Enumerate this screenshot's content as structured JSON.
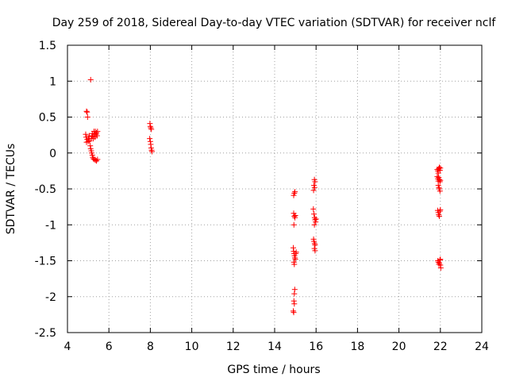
{
  "chart_data": {
    "type": "scatter",
    "title": "Day 259 of 2018, Sidereal Day-to-day VTEC variation (SDTVAR) for receiver nclf",
    "xlabel": "GPS time / hours",
    "ylabel": "SDTVAR / TECUs",
    "xlim": [
      4,
      24
    ],
    "ylim": [
      -2.5,
      1.5
    ],
    "xticks": [
      4,
      6,
      8,
      10,
      12,
      14,
      16,
      18,
      20,
      22,
      24
    ],
    "xtick_labels": [
      "4",
      "6",
      "8",
      "10",
      "12",
      "14",
      "16",
      "18",
      "20",
      "22",
      "24"
    ],
    "yticks": [
      -2.5,
      -2,
      -1.5,
      -1,
      -0.5,
      0,
      0.5,
      1,
      1.5
    ],
    "ytick_labels": [
      "-2.5",
      "-2",
      "-1.5",
      "-1",
      "-0.5",
      "0",
      "0.5",
      "1",
      "1.5"
    ],
    "grid": true,
    "marker": "+",
    "marker_color": "#ff0000",
    "series": [
      {
        "name": "SDTVAR",
        "points": [
          [
            4.92,
            0.58
          ],
          [
            4.95,
            0.57
          ],
          [
            4.97,
            0.5
          ],
          [
            4.88,
            0.26
          ],
          [
            4.9,
            0.22
          ],
          [
            4.95,
            0.19
          ],
          [
            5.0,
            0.16
          ],
          [
            4.92,
            0.15
          ],
          [
            5.02,
            0.2
          ],
          [
            5.05,
            0.24
          ],
          [
            5.07,
            0.17
          ],
          [
            5.12,
            1.02
          ],
          [
            5.1,
            0.1
          ],
          [
            5.12,
            0.06
          ],
          [
            5.15,
            0.03
          ],
          [
            5.17,
            0.0
          ],
          [
            5.2,
            -0.03
          ],
          [
            5.22,
            -0.06
          ],
          [
            5.25,
            -0.08
          ],
          [
            5.3,
            -0.09
          ],
          [
            5.35,
            -0.1
          ],
          [
            5.4,
            -0.11
          ],
          [
            5.45,
            -0.09
          ],
          [
            5.15,
            0.2
          ],
          [
            5.18,
            0.23
          ],
          [
            5.2,
            0.27
          ],
          [
            5.23,
            0.24
          ],
          [
            5.25,
            0.2
          ],
          [
            5.28,
            0.3
          ],
          [
            5.3,
            0.27
          ],
          [
            5.33,
            0.22
          ],
          [
            5.35,
            0.3
          ],
          [
            5.38,
            0.26
          ],
          [
            5.4,
            0.28
          ],
          [
            5.43,
            0.24
          ],
          [
            5.45,
            0.3
          ],
          [
            7.98,
            0.41
          ],
          [
            8.0,
            0.37
          ],
          [
            8.02,
            0.35
          ],
          [
            8.05,
            0.33
          ],
          [
            7.97,
            0.2
          ],
          [
            8.0,
            0.16
          ],
          [
            8.02,
            0.12
          ],
          [
            8.04,
            0.07
          ],
          [
            8.06,
            0.04
          ],
          [
            8.08,
            0.02
          ],
          [
            14.92,
            -0.59
          ],
          [
            14.95,
            -0.56
          ],
          [
            14.98,
            -0.54
          ],
          [
            14.92,
            -0.84
          ],
          [
            14.95,
            -0.88
          ],
          [
            14.98,
            -0.9
          ],
          [
            15.0,
            -0.87
          ],
          [
            14.93,
            -1.0
          ],
          [
            14.9,
            -1.32
          ],
          [
            14.92,
            -1.37
          ],
          [
            14.94,
            -1.4
          ],
          [
            14.96,
            -1.43
          ],
          [
            14.98,
            -1.46
          ],
          [
            15.0,
            -1.48
          ],
          [
            15.02,
            -1.4
          ],
          [
            15.04,
            -1.38
          ],
          [
            14.93,
            -1.52
          ],
          [
            14.95,
            -1.55
          ],
          [
            14.97,
            -1.9
          ],
          [
            14.95,
            -1.96
          ],
          [
            14.93,
            -2.06
          ],
          [
            14.95,
            -2.1
          ],
          [
            14.9,
            -2.2
          ],
          [
            14.92,
            -2.22
          ],
          [
            15.92,
            -0.37
          ],
          [
            15.95,
            -0.4
          ],
          [
            15.9,
            -0.45
          ],
          [
            15.93,
            -0.48
          ],
          [
            15.88,
            -0.52
          ],
          [
            15.87,
            -0.78
          ],
          [
            15.9,
            -0.85
          ],
          [
            15.93,
            -0.9
          ],
          [
            15.95,
            -0.93
          ],
          [
            15.98,
            -0.96
          ],
          [
            16.0,
            -0.92
          ],
          [
            15.92,
            -1.0
          ],
          [
            15.88,
            -1.2
          ],
          [
            15.9,
            -1.23
          ],
          [
            15.93,
            -1.26
          ],
          [
            15.95,
            -1.28
          ],
          [
            15.92,
            -1.33
          ],
          [
            15.95,
            -1.36
          ],
          [
            21.85,
            -0.23
          ],
          [
            21.88,
            -0.25
          ],
          [
            21.9,
            -0.28
          ],
          [
            21.92,
            -0.22
          ],
          [
            21.95,
            -0.2
          ],
          [
            21.98,
            -0.24
          ],
          [
            22.0,
            -0.21
          ],
          [
            21.85,
            -0.33
          ],
          [
            21.88,
            -0.36
          ],
          [
            21.9,
            -0.39
          ],
          [
            21.92,
            -0.34
          ],
          [
            21.95,
            -0.37
          ],
          [
            21.98,
            -0.4
          ],
          [
            22.0,
            -0.38
          ],
          [
            21.9,
            -0.45
          ],
          [
            21.93,
            -0.48
          ],
          [
            21.95,
            -0.5
          ],
          [
            21.98,
            -0.53
          ],
          [
            21.87,
            -0.8
          ],
          [
            21.9,
            -0.83
          ],
          [
            21.92,
            -0.86
          ],
          [
            21.95,
            -0.88
          ],
          [
            21.98,
            -0.81
          ],
          [
            22.0,
            -0.79
          ],
          [
            21.88,
            -1.5
          ],
          [
            21.9,
            -1.52
          ],
          [
            21.93,
            -1.55
          ],
          [
            21.95,
            -1.53
          ],
          [
            21.98,
            -1.49
          ],
          [
            22.0,
            -1.48
          ],
          [
            22.02,
            -1.6
          ],
          [
            22.0,
            -1.56
          ]
        ]
      }
    ]
  }
}
